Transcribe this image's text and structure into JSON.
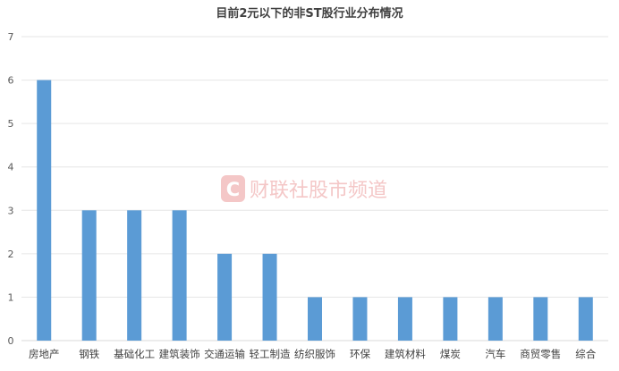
{
  "chart_data": {
    "type": "bar",
    "title": "目前2元以下的非ST股行业分布情况",
    "categories": [
      "房地产",
      "钢铁",
      "基础化工",
      "建筑装饰",
      "交通运输",
      "轻工制造",
      "纺织服饰",
      "环保",
      "建筑材料",
      "煤炭",
      "汽车",
      "商贸零售",
      "综合"
    ],
    "values": [
      6,
      3,
      3,
      3,
      2,
      2,
      1,
      1,
      1,
      1,
      1,
      1,
      1
    ],
    "yticks": [
      "0",
      "1",
      "2",
      "3",
      "4",
      "5",
      "6",
      "7"
    ],
    "ylim": [
      0,
      7
    ],
    "xlabel": "",
    "ylabel": "",
    "grid": true,
    "bar_color": "#5b9bd5",
    "grid_color": "#e6e6e6",
    "text_color": "#595959"
  },
  "watermark": {
    "logo_letter": "C",
    "text": "财联社股市频道",
    "color": "#f4c7c7"
  }
}
